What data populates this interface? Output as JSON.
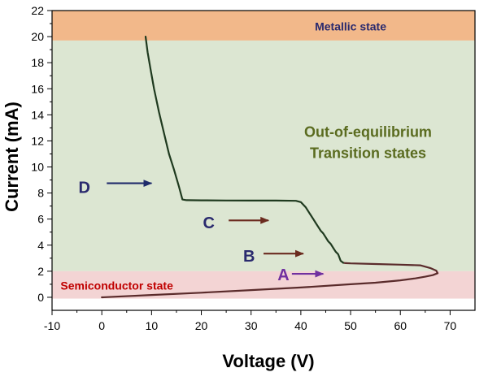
{
  "chart_data": {
    "type": "line",
    "xlabel": "Voltage (V)",
    "ylabel": "Current (mA)",
    "xlim": [
      -10,
      75
    ],
    "ylim": [
      -1,
      22
    ],
    "xticks": [
      -10,
      0,
      10,
      20,
      30,
      40,
      50,
      60,
      70
    ],
    "yticks": [
      0,
      2,
      4,
      6,
      8,
      10,
      12,
      14,
      16,
      18,
      20,
      22
    ],
    "grid": false,
    "legend": "none",
    "regions": [
      {
        "label": "Metallic state",
        "y0": 19.7,
        "y1": 22,
        "color": "#f2b88a",
        "text_color": "#2a2a6e"
      },
      {
        "label": "Out-of-equilibrium\nTransition states",
        "y0": 2,
        "y1": 19.7,
        "color": "#dce6d2",
        "text_color": "#5a6b1f"
      },
      {
        "label": "Semiconductor state",
        "y0": -0.1,
        "y1": 2,
        "color": "#f3d4d4",
        "text_color": "#c00000"
      }
    ],
    "series": [
      {
        "color": "#5a2b2b",
        "x": [
          0,
          10,
          20,
          30,
          40,
          50,
          55,
          60,
          63,
          65,
          66.5,
          67.5,
          67.2,
          66,
          64,
          60,
          55,
          50,
          49,
          48.5
        ],
        "y": [
          0,
          0.18,
          0.35,
          0.55,
          0.75,
          1.0,
          1.12,
          1.3,
          1.45,
          1.58,
          1.7,
          1.85,
          2.05,
          2.25,
          2.45,
          2.5,
          2.55,
          2.6,
          2.62,
          2.65
        ]
      },
      {
        "color": "#1f3a1f",
        "x": [
          48.5,
          48,
          47.8,
          47.5,
          47,
          46.5,
          46,
          45.5,
          45,
          44.5,
          44,
          43.5,
          43,
          42.5,
          42,
          41,
          40,
          39,
          35,
          30,
          25,
          20,
          17,
          16.2,
          15.5,
          14.5,
          13.5,
          12.5,
          11.5,
          10.5,
          9.8,
          9.2,
          8.8
        ],
        "y": [
          2.65,
          2.8,
          3.0,
          3.3,
          3.5,
          3.8,
          4.1,
          4.3,
          4.6,
          4.9,
          5.1,
          5.4,
          5.7,
          6.0,
          6.3,
          6.9,
          7.3,
          7.4,
          7.42,
          7.42,
          7.43,
          7.44,
          7.45,
          7.5,
          8.5,
          9.8,
          11.0,
          12.6,
          14.2,
          16.0,
          17.5,
          18.8,
          20.0
        ]
      }
    ],
    "annotations": [
      {
        "label": "A",
        "x": 36.5,
        "y": 1.8,
        "color": "#7030a0",
        "arrow": {
          "x0": 38.2,
          "x1": 44.5,
          "y": 1.8
        }
      },
      {
        "label": "B",
        "x": 29.6,
        "y": 3.25,
        "color": "#2a2a6e",
        "arrow": {
          "x0": 32.5,
          "x1": 40.5,
          "y": 3.35
        }
      },
      {
        "label": "C",
        "x": 21.5,
        "y": 5.8,
        "color": "#2a2a6e",
        "arrow": {
          "x0": 25.5,
          "x1": 33.5,
          "y": 5.9
        }
      },
      {
        "label": "D",
        "x": -3.5,
        "y": 8.5,
        "color": "#2a2a6e",
        "arrow": {
          "x0": 1.0,
          "x1": 10.0,
          "y": 8.75
        }
      }
    ],
    "colors": {
      "semiconductor_arrow": "#6b2b1f",
      "transition_arrow": "#6b2b1f",
      "metal_arrow": "#1f2b6b"
    }
  }
}
